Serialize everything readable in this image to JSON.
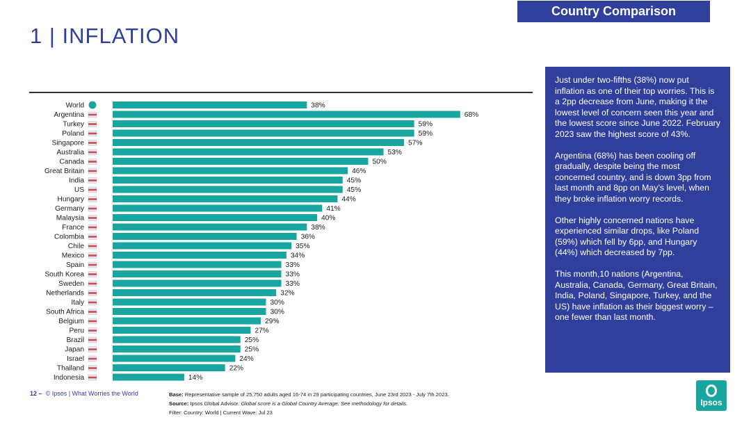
{
  "header": {
    "section_tag": "Country Comparison",
    "page_title": "1 | INFLATION"
  },
  "chart_data": {
    "type": "bar",
    "orientation": "horizontal",
    "title": "",
    "bar_color": "#1aa6a0",
    "value_suffix": "%",
    "xlim": [
      0,
      75
    ],
    "categories": [
      "World",
      "Argentina",
      "Turkey",
      "Poland",
      "Singapore",
      "Australia",
      "Canada",
      "Great Britain",
      "India",
      "US",
      "Hungary",
      "Germany",
      "Malaysia",
      "France",
      "Colombia",
      "Chile",
      "Mexico",
      "Spain",
      "South Korea",
      "Sweden",
      "Netherlands",
      "Italy",
      "South Africa",
      "Belgium",
      "Peru",
      "Brazil",
      "Japan",
      "Israel",
      "Thailand",
      "Indonesia"
    ],
    "values": [
      38,
      68,
      59,
      59,
      57,
      53,
      50,
      46,
      45,
      45,
      44,
      41,
      40,
      38,
      36,
      35,
      34,
      33,
      33,
      33,
      32,
      30,
      30,
      29,
      27,
      25,
      25,
      24,
      22,
      14
    ],
    "labels": [
      "38%",
      "68%",
      "59%",
      "59%",
      "57%",
      "53%",
      "50%",
      "46%",
      "45%",
      "45%",
      "44%",
      "41%",
      "40%",
      "38%",
      "36%",
      "35%",
      "34%",
      "33%",
      "33%",
      "33%",
      "32%",
      "30%",
      "30%",
      "29%",
      "27%",
      "25%",
      "25%",
      "24%",
      "22%",
      "14%"
    ]
  },
  "info_box": {
    "paragraphs": [
      "Just under two-fifths (38%) now put inflation as one of their top worries. This is a 2pp decrease from June, making it the lowest level of concern seen this year and the lowest score since June 2022. February 2023 saw the highest score of 43%.",
      "Argentina (68%) has been cooling off gradually, despite being the most concerned country, and is down 3pp from last month and 8pp on May’s level, when they broke inflation worry records.",
      "Other highly concerned nations have experienced similar drops, like Poland (59%) which fell by 6pp, and Hungary (44%) which decreased by 7pp.",
      "This month,10 nations (Argentina, Australia, Canada, Germany, Great Britain, India, Poland, Singapore, Turkey, and the US) have inflation as their biggest worry – one fewer than last month."
    ]
  },
  "footer": {
    "page_number": "12",
    "dash": "–",
    "source_line": "© Ipsos | What Worries the World",
    "base_label": "Base:",
    "base_text": "Representative sample of 25,750 adults aged 16-74 in 29 participating countries, June 23rd 2023 - July 7th 2023.",
    "source_label": "Source:",
    "source_text": "Ipsos Global Advisor.",
    "source_italic": "Global score is a Global Country Average. See methodology for details.",
    "filter_text": "Filter: Country: World | Current Wave: Jul 23"
  },
  "logo": {
    "text": "Ipsos",
    "color": "#1aa6a0"
  }
}
